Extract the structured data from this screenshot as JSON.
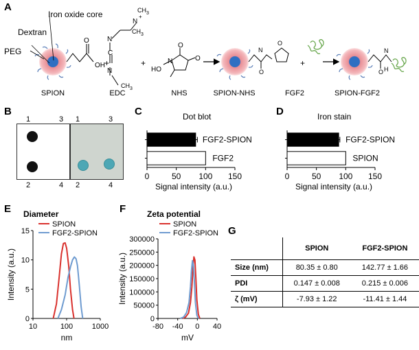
{
  "panel_labels": {
    "a": "A",
    "b": "B",
    "c": "C",
    "d": "D",
    "e": "E",
    "f": "F",
    "g": "G"
  },
  "panel_a": {
    "callouts": {
      "iron_oxide_core": "Iron oxide core",
      "dextran": "Dextran",
      "peg": "PEG"
    },
    "captions": [
      "SPION",
      "EDC",
      "NHS",
      "SPION-NHS",
      "FGF2",
      "SPION-FGF2"
    ],
    "plus": "+",
    "chem": {
      "oh": "OH",
      "o": "O",
      "n": "N",
      "nplus": "N",
      "plus_sign": "+",
      "h": "H",
      "ho_n": "HO",
      "ch3": "CH",
      "sub3": "3"
    }
  },
  "panel_b": {
    "left_top": [
      "1",
      "3"
    ],
    "left_bottom": [
      "2",
      "4"
    ],
    "right_top": [
      "1",
      "3"
    ],
    "right_bottom": [
      "2",
      "4"
    ]
  },
  "chart_data": [
    {
      "id": "C",
      "type": "bar",
      "orientation": "horizontal",
      "title": "Dot blot",
      "categories": [
        "FGF2-SPION",
        "FGF2"
      ],
      "values": [
        83,
        100
      ],
      "errors": [
        3,
        0
      ],
      "xlabel": "Signal intensity (a.u.)",
      "xlim": [
        0,
        150
      ],
      "xticks": [
        "0",
        "50",
        "100",
        "150"
      ],
      "colors": [
        "#000000",
        "#ffffff"
      ]
    },
    {
      "id": "D",
      "type": "bar",
      "orientation": "horizontal",
      "title": "Iron stain",
      "categories": [
        "FGF2-SPION",
        "SPION"
      ],
      "values": [
        88,
        100
      ],
      "errors": [
        2,
        0
      ],
      "xlabel": "Signal intensity (a.u.)",
      "xlim": [
        0,
        150
      ],
      "xticks": [
        "0",
        "50",
        "100",
        "150"
      ],
      "colors": [
        "#000000",
        "#ffffff"
      ]
    },
    {
      "id": "E",
      "type": "line",
      "title": "Diameter",
      "xlabel": "nm",
      "ylabel": "Intensity (a.u.)",
      "xscale": "log",
      "xlim": [
        10,
        1000
      ],
      "xticks": [
        "10",
        "100",
        "1000"
      ],
      "ylim": [
        0,
        15
      ],
      "yticks": [
        "0",
        "5",
        "10",
        "15"
      ],
      "series": [
        {
          "name": "SPION",
          "color": "#d9302c",
          "x": [
            40,
            50,
            60,
            70,
            80,
            90,
            100,
            115,
            130,
            150,
            165
          ],
          "y": [
            0,
            2.5,
            7,
            11,
            12.8,
            12.9,
            12,
            9,
            5,
            1.5,
            0
          ]
        },
        {
          "name": "FGF2-SPION",
          "color": "#6e9bd0",
          "x": [
            55,
            70,
            90,
            110,
            130,
            150,
            170,
            190,
            210,
            240,
            270,
            300
          ],
          "y": [
            0,
            1.5,
            4,
            7,
            8.8,
            10,
            10.5,
            10.2,
            9,
            5.5,
            2,
            0
          ]
        }
      ]
    },
    {
      "id": "F",
      "type": "line",
      "title": "Zeta potential",
      "xlabel": "mV",
      "ylabel": "Intensity (a.u.)",
      "xlim": [
        -80,
        40
      ],
      "xticks": [
        "-80",
        "-40",
        "0",
        "40"
      ],
      "ylim": [
        0,
        300000
      ],
      "yticks": [
        "0",
        "50000",
        "100000",
        "150000",
        "200000",
        "250000",
        "300000"
      ],
      "series": [
        {
          "name": "SPION",
          "color": "#d9302c",
          "x": [
            -30,
            -24,
            -18,
            -14,
            -11,
            -9,
            -7,
            -5,
            -3,
            -1,
            2,
            5
          ],
          "y": [
            0,
            5000,
            20000,
            60000,
            120000,
            190000,
            232000,
            220000,
            150000,
            70000,
            15000,
            0
          ]
        },
        {
          "name": "FGF2-SPION",
          "color": "#6e9bd0",
          "x": [
            -35,
            -28,
            -22,
            -17,
            -14,
            -12,
            -10,
            -8,
            -6,
            -4,
            -1,
            2
          ],
          "y": [
            0,
            5000,
            22000,
            60000,
            120000,
            180000,
            218000,
            200000,
            140000,
            60000,
            12000,
            0
          ]
        }
      ]
    }
  ],
  "panel_g": {
    "columns": [
      "SPION",
      "FGF2-SPION"
    ],
    "rows": [
      {
        "label": "Size (nm)",
        "values": [
          "80.35 ± 0.80",
          "142.77 ± 1.66"
        ]
      },
      {
        "label": "PDI",
        "values": [
          "0.147 ± 0.008",
          "0.215 ± 0.006"
        ]
      },
      {
        "label": "ζ (mV)",
        "values": [
          "-7.93 ± 1.22",
          "-11.41 ± 1.44"
        ]
      }
    ]
  }
}
